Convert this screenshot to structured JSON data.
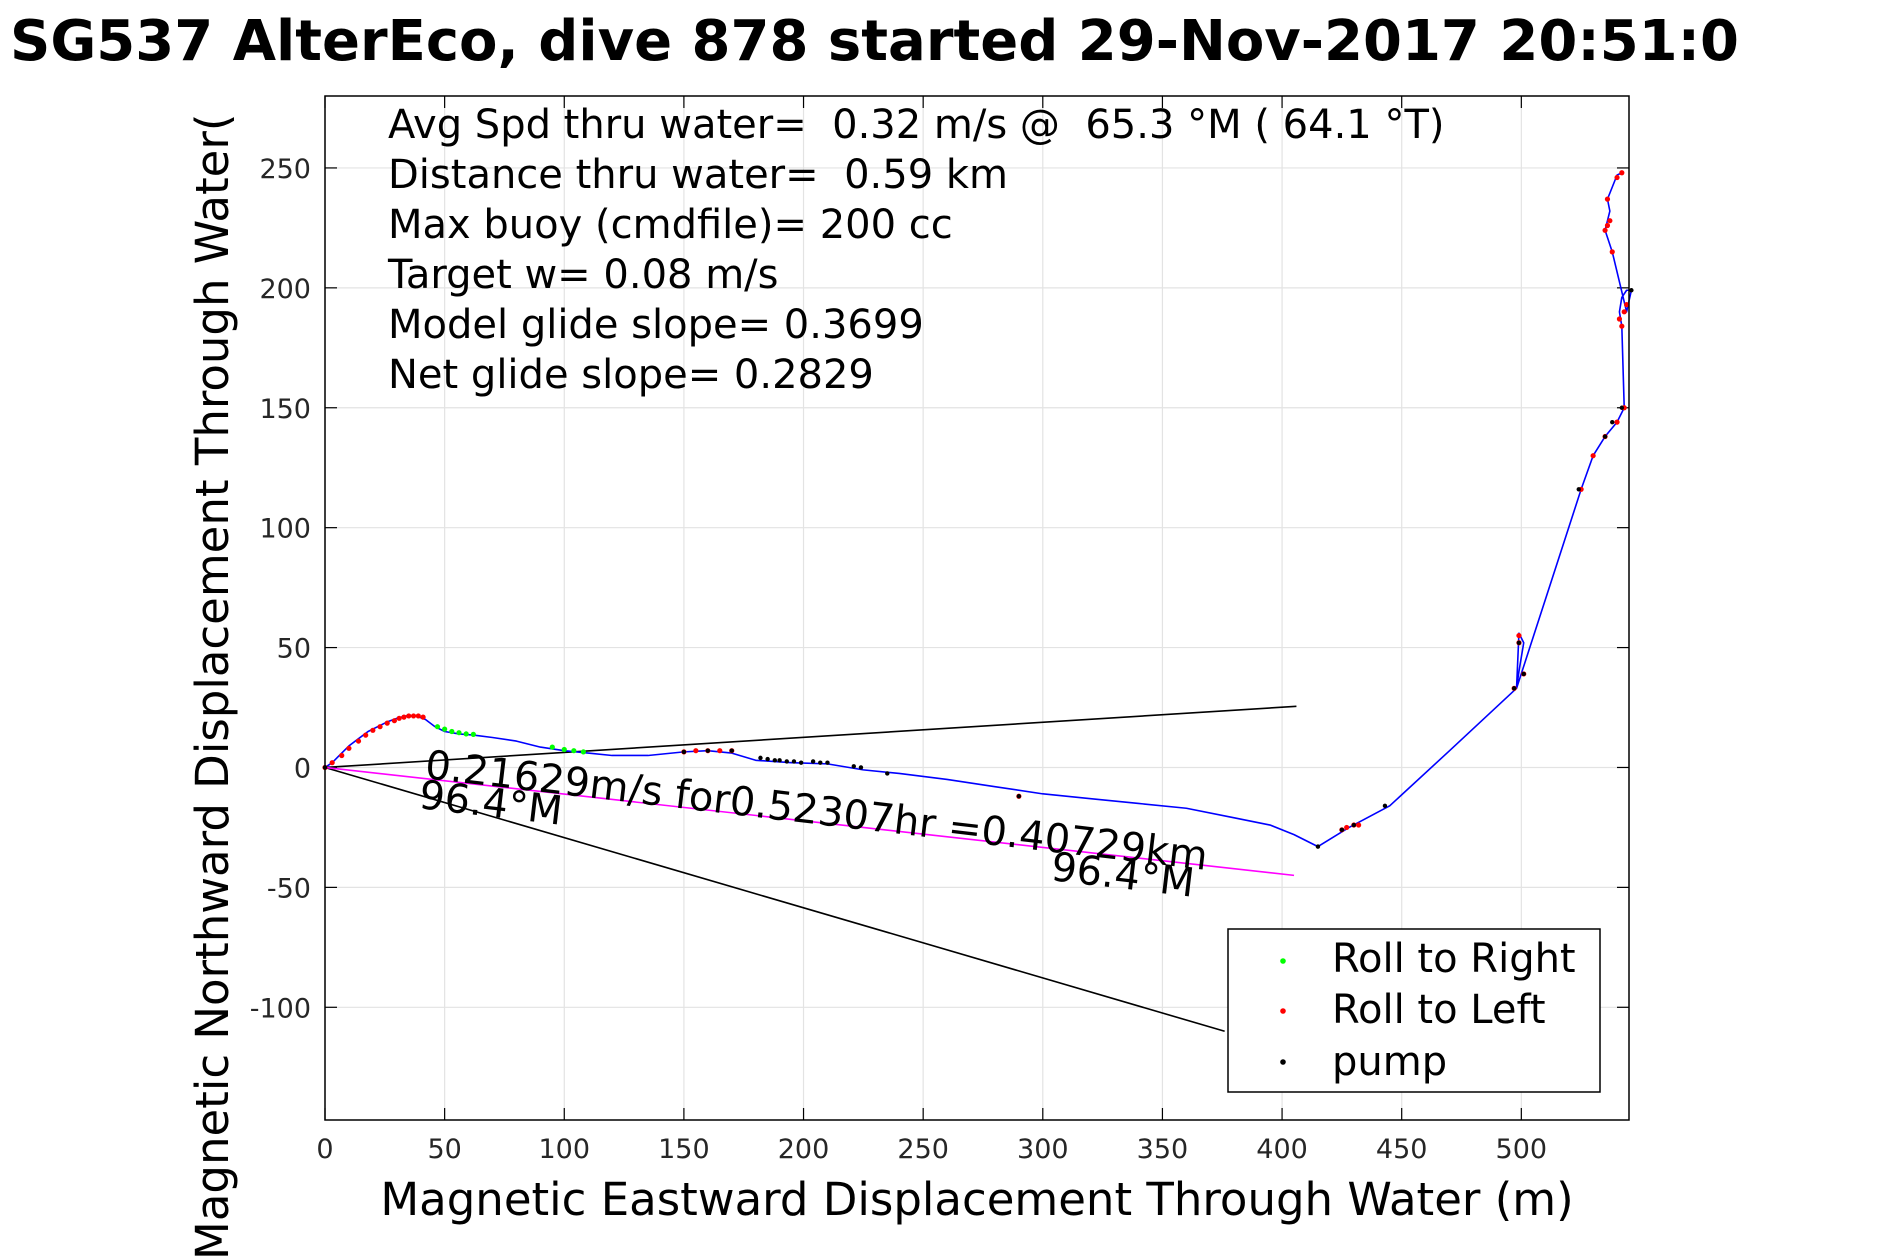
{
  "chart_data": {
    "type": "line",
    "title": "SG537 AlterEco, dive 878 started 29-Nov-2017 20:51:0",
    "xlabel": "Magnetic Eastward Displacement Through Water (m)",
    "ylabel": "Magnetic Northward Displacement Through Water(",
    "xlim": [
      0,
      545
    ],
    "ylim": [
      -147,
      280
    ],
    "grid": true,
    "xticks": [
      0,
      50,
      100,
      150,
      200,
      250,
      300,
      350,
      400,
      450,
      500
    ],
    "yticks": [
      -100,
      -50,
      0,
      50,
      100,
      150,
      200,
      250
    ],
    "xticklabels": [
      "0",
      "50",
      "100",
      "150",
      "200",
      "250",
      "300",
      "350",
      "400",
      "450",
      "500"
    ],
    "yticklabels": [
      "-100",
      "-50",
      "0",
      "50",
      "100",
      "150",
      "200",
      "250"
    ],
    "annotations": [
      "Avg Spd thru water=  0.32 m/s @  65.3 °M ( 64.1 °T)",
      "Distance thru water=  0.59 km",
      "Max buoy (cmdfile)= 200 cc",
      "Target w= 0.08 m/s",
      "Model glide slope= 0.3699",
      "Net glide slope= 0.2829"
    ],
    "current_label": "0.21629m/s for0.52307hr =0.40729km",
    "heading_label_start": "96.4°M",
    "heading_label_end": "96.4°M",
    "legend": {
      "placement": "bottom-right",
      "entries": [
        {
          "label": "Roll to Right",
          "color": "#00ff00"
        },
        {
          "label": "Roll to Left",
          "color": "#ff0000"
        },
        {
          "label": "pump",
          "color": "#000000"
        }
      ]
    },
    "track": {
      "name": "track",
      "color": "#0000ff",
      "x": [
        0,
        3,
        6,
        10,
        14,
        18,
        22,
        26,
        30,
        34,
        38,
        42,
        46,
        50,
        56,
        62,
        70,
        80,
        90,
        100,
        110,
        120,
        135,
        150,
        160,
        170,
        180,
        195,
        210,
        225,
        240,
        260,
        280,
        300,
        320,
        340,
        360,
        380,
        395,
        405,
        415,
        428,
        445,
        470,
        498,
        499,
        501,
        499,
        498,
        525,
        530,
        535,
        540,
        543,
        542,
        541,
        542,
        544,
        546,
        544,
        538,
        535,
        536,
        537,
        536,
        540,
        542
      ],
      "y": [
        0,
        2,
        5,
        9,
        12,
        15,
        17,
        19,
        20.5,
        21.5,
        21.5,
        20,
        17,
        15,
        14,
        13.5,
        12.5,
        11,
        8.5,
        7,
        6,
        5,
        5,
        6.5,
        7,
        6,
        3,
        2,
        1.5,
        -1,
        -2.5,
        -5,
        -8,
        -11,
        -13,
        -15,
        -17,
        -21,
        -24,
        -28,
        -33,
        -25,
        -16,
        7,
        33,
        40,
        52,
        56,
        33,
        116,
        130,
        138,
        144,
        150,
        184,
        190,
        196,
        199,
        199,
        190,
        215,
        224,
        228,
        232,
        237,
        247,
        248
      ]
    },
    "points_left": {
      "x": [
        0,
        3,
        7,
        10,
        14,
        17,
        20,
        23,
        26,
        29,
        31,
        33,
        35,
        37,
        39,
        41,
        150,
        155,
        160,
        165,
        170,
        290,
        425,
        427,
        430,
        432,
        497,
        499,
        499,
        501,
        525,
        530,
        535,
        540,
        543,
        542,
        541,
        543,
        544,
        538,
        535,
        536,
        537,
        536,
        540,
        542
      ],
      "y": [
        0,
        2,
        5,
        8,
        11,
        13.5,
        15.5,
        17,
        18.5,
        19.5,
        20.5,
        21,
        21.5,
        21.5,
        21.5,
        21,
        6.5,
        7,
        7,
        7,
        7,
        -12,
        -26,
        -25,
        -24,
        -24,
        33,
        52,
        55,
        39,
        116,
        130,
        138,
        144,
        150,
        184,
        187,
        190,
        193,
        215,
        224,
        226,
        228,
        237,
        246,
        248
      ]
    },
    "points_right": {
      "x": [
        47,
        50,
        53,
        56,
        59,
        62,
        95,
        100,
        104,
        108
      ],
      "y": [
        17,
        16,
        15,
        14.5,
        14,
        13.8,
        8.5,
        7.5,
        7,
        6.5
      ]
    },
    "points_pump": {
      "x": [
        0,
        150,
        160,
        170,
        182,
        185,
        188,
        190,
        193,
        196,
        199,
        204,
        207,
        210,
        221,
        224,
        235,
        290,
        415,
        425,
        430,
        443,
        497,
        499,
        501,
        524,
        535,
        538,
        542,
        546
      ],
      "y": [
        0,
        6.5,
        7,
        7,
        4,
        3.5,
        3,
        3,
        2.5,
        2.5,
        2,
        2.5,
        2,
        2,
        0.5,
        0,
        -2.5,
        -12,
        -33,
        -26,
        -24,
        -16,
        33,
        52,
        39,
        116,
        138,
        144,
        150,
        199
      ]
    },
    "lines": [
      {
        "name": "upper_bound",
        "color": "#000000",
        "x": [
          0,
          406
        ],
        "y": [
          0,
          25.5
        ]
      },
      {
        "name": "lower_bound",
        "color": "#000000",
        "x": [
          0,
          376
        ],
        "y": [
          0,
          -110
        ]
      },
      {
        "name": "current_vector",
        "color": "#ff00ff",
        "x": [
          0,
          405
        ],
        "y": [
          0,
          -45
        ]
      }
    ]
  }
}
